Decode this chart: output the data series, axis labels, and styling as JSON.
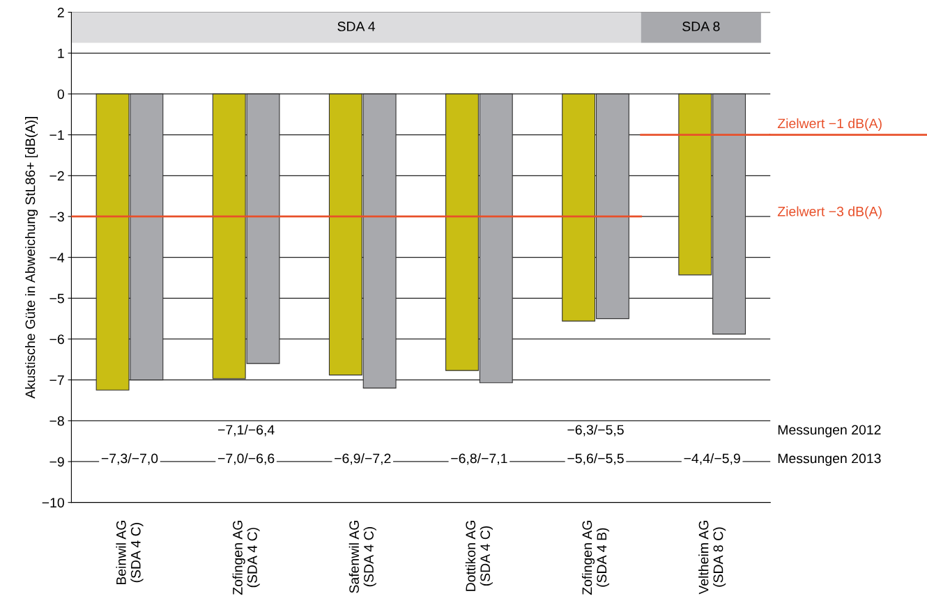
{
  "chart_data": {
    "type": "bar",
    "ylabel": "Akustische Güte in Abweichung StL86+ [dB(A)]",
    "categories": [
      "Beinwil AG\n(SDA 4 C)",
      "Zofingen AG\n(SDA 4 C)",
      "Safenwil AG\n(SDA 4 C)",
      "Dottikon AG\n(SDA 4 C)",
      "Zofingen AG\n(SDA 4 B)",
      "Veltheim AG\n(SDA 8 C)"
    ],
    "series": [
      {
        "color": "#c9be14",
        "values": [
          -7.25,
          -6.97,
          -6.88,
          -6.77,
          -5.56,
          -4.43
        ]
      },
      {
        "color": "#a8a9ad",
        "values": [
          -7.0,
          -6.6,
          -7.2,
          -7.07,
          -5.5,
          -5.88
        ]
      }
    ],
    "ylim": [
      -10,
      2
    ],
    "yticks": [
      {
        "value": -10,
        "label": "−10"
      },
      {
        "value": -9,
        "label": "−9"
      },
      {
        "value": -8,
        "label": "−8"
      },
      {
        "value": -7,
        "label": "−7"
      },
      {
        "value": -6,
        "label": "−6"
      },
      {
        "value": -5,
        "label": "−5"
      },
      {
        "value": -4,
        "label": "−4"
      },
      {
        "value": -3,
        "label": "−3"
      },
      {
        "value": -2,
        "label": "−2"
      },
      {
        "value": -1,
        "label": "−1"
      },
      0,
      1,
      2
    ],
    "grid": "y",
    "ref_lines": [
      {
        "axis": "y",
        "value": -3,
        "label": "Zielwert −3 dB(A)",
        "color": "#e8502a"
      },
      {
        "axis": "y",
        "value": -1,
        "label": "Zielwert −1 dB(A)",
        "color": "#e8502a"
      }
    ],
    "annotations": [
      "SDA 4",
      "SDA 8",
      "Messungen 2012",
      "Messungen 2013",
      "−7,3/−7,0",
      "−7,1/−6,4",
      "−7,0/−6,6",
      "−6,9/−7,2",
      "−6,8/−7,1",
      "−6,3/−5,5",
      "−5,6/−5,5",
      "−4,4/−5,9"
    ]
  }
}
